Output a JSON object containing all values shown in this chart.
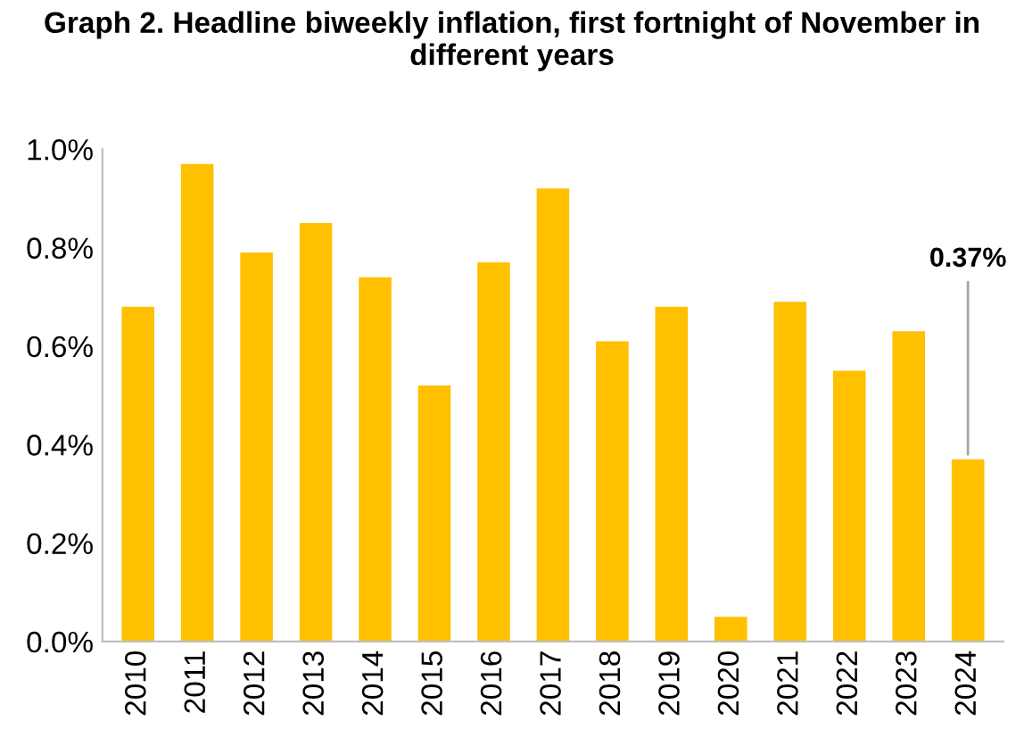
{
  "chart_data": {
    "type": "bar",
    "title": "Graph 2. Headline biweekly inflation, first fortnight of November in different years",
    "categories": [
      "2010",
      "2011",
      "2012",
      "2013",
      "2014",
      "2015",
      "2016",
      "2017",
      "2018",
      "2019",
      "2020",
      "2021",
      "2022",
      "2023",
      "2024"
    ],
    "values": [
      0.68,
      0.97,
      0.79,
      0.85,
      0.74,
      0.52,
      0.77,
      0.92,
      0.61,
      0.68,
      0.05,
      0.69,
      0.55,
      0.63,
      0.37
    ],
    "color": "#ffc000",
    "ylim": [
      0,
      1.0
    ],
    "yticks": [
      {
        "value": 0,
        "label": "0.0%"
      },
      {
        "value": 0.2,
        "label": "0.2%"
      },
      {
        "value": 0.4,
        "label": "0.4%"
      },
      {
        "value": 0.6,
        "label": "0.6%"
      },
      {
        "value": 0.8,
        "label": "0.8%"
      },
      {
        "value": 1.0,
        "label": "1.0%"
      }
    ],
    "annotations": [
      {
        "text": "0.37%",
        "x": "2024",
        "y": 0.37
      }
    ],
    "grid": false,
    "legend": false
  }
}
